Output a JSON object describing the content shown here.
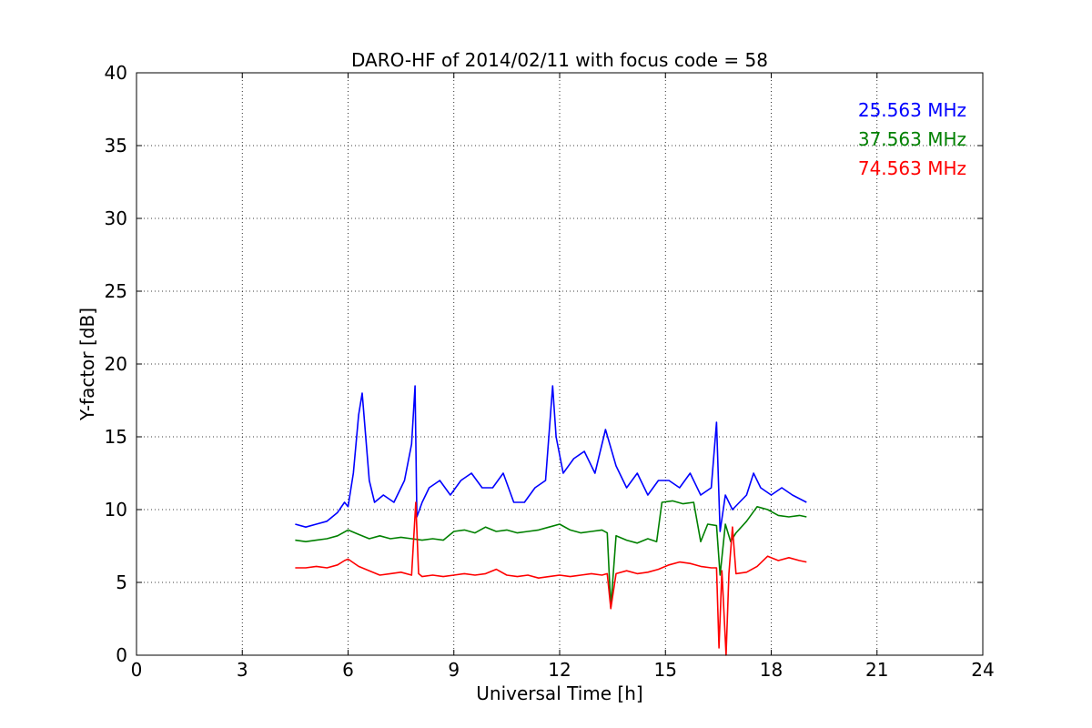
{
  "chart_data": {
    "type": "line",
    "title": "DARO-HF of 2014/02/11 with focus code = 58",
    "xlabel": "Universal Time [h]",
    "ylabel": "Y-factor [dB]",
    "xlim": [
      0,
      24
    ],
    "ylim": [
      0,
      40
    ],
    "xticks": [
      "0",
      "3",
      "6",
      "9",
      "12",
      "15",
      "18",
      "21",
      "24"
    ],
    "yticks": [
      "0",
      "5",
      "10",
      "15",
      "20",
      "25",
      "30",
      "35",
      "40"
    ],
    "grid": true,
    "legend_position": "top-right",
    "series": [
      {
        "name": "25.563 MHz",
        "color": "#0000ff",
        "x": [
          4.5,
          4.8,
          5.1,
          5.4,
          5.7,
          5.9,
          6.0,
          6.15,
          6.3,
          6.4,
          6.5,
          6.6,
          6.75,
          7.0,
          7.3,
          7.6,
          7.8,
          7.9,
          7.95,
          8.1,
          8.3,
          8.6,
          8.9,
          9.2,
          9.5,
          9.8,
          10.1,
          10.4,
          10.7,
          11.0,
          11.3,
          11.6,
          11.8,
          11.9,
          12.1,
          12.4,
          12.7,
          13.0,
          13.3,
          13.6,
          13.9,
          14.2,
          14.5,
          14.8,
          15.1,
          15.4,
          15.7,
          16.0,
          16.3,
          16.45,
          16.55,
          16.7,
          16.9,
          17.1,
          17.3,
          17.5,
          17.7,
          18.0,
          18.3,
          18.6,
          19.0
        ],
        "y": [
          9.0,
          8.8,
          9.0,
          9.2,
          9.8,
          10.5,
          10.2,
          12.5,
          16.5,
          18.0,
          15.0,
          12.0,
          10.5,
          11.0,
          10.5,
          12.0,
          14.5,
          18.5,
          9.5,
          10.5,
          11.5,
          12.0,
          11.0,
          12.0,
          12.5,
          11.5,
          11.5,
          12.5,
          10.5,
          10.5,
          11.5,
          12.0,
          18.5,
          15.0,
          12.5,
          13.5,
          14.0,
          12.5,
          15.5,
          13.0,
          11.5,
          12.5,
          11.0,
          12.0,
          12.0,
          11.5,
          12.5,
          11.0,
          11.5,
          16.0,
          8.5,
          11.0,
          10.0,
          10.5,
          11.0,
          12.5,
          11.5,
          11.0,
          11.5,
          11.0,
          10.5
        ]
      },
      {
        "name": "37.563 MHz",
        "color": "#008000",
        "x": [
          4.5,
          4.8,
          5.1,
          5.4,
          5.7,
          6.0,
          6.3,
          6.6,
          6.9,
          7.2,
          7.5,
          7.8,
          8.1,
          8.4,
          8.7,
          9.0,
          9.3,
          9.6,
          9.9,
          10.2,
          10.5,
          10.8,
          11.1,
          11.4,
          11.7,
          12.0,
          12.3,
          12.6,
          12.9,
          13.2,
          13.35,
          13.45,
          13.6,
          13.9,
          14.2,
          14.5,
          14.75,
          14.9,
          15.2,
          15.5,
          15.8,
          16.0,
          16.2,
          16.45,
          16.55,
          16.7,
          16.85,
          17.0,
          17.3,
          17.6,
          17.9,
          18.2,
          18.5,
          18.8,
          19.0
        ],
        "y": [
          7.9,
          7.8,
          7.9,
          8.0,
          8.2,
          8.6,
          8.3,
          8.0,
          8.2,
          8.0,
          8.1,
          8.0,
          7.9,
          8.0,
          7.9,
          8.5,
          8.6,
          8.4,
          8.8,
          8.5,
          8.6,
          8.4,
          8.5,
          8.6,
          8.8,
          9.0,
          8.6,
          8.4,
          8.5,
          8.6,
          8.4,
          3.3,
          8.2,
          7.9,
          7.7,
          8.0,
          7.8,
          10.5,
          10.6,
          10.4,
          10.5,
          7.8,
          9.0,
          8.9,
          5.5,
          9.0,
          7.8,
          8.4,
          9.2,
          10.2,
          10.0,
          9.6,
          9.5,
          9.6,
          9.5
        ]
      },
      {
        "name": "74.563 MHz",
        "color": "#ff0000",
        "x": [
          4.5,
          4.8,
          5.1,
          5.4,
          5.7,
          5.9,
          6.0,
          6.3,
          6.6,
          6.9,
          7.2,
          7.5,
          7.8,
          7.92,
          8.0,
          8.1,
          8.4,
          8.7,
          9.0,
          9.3,
          9.6,
          9.9,
          10.2,
          10.5,
          10.8,
          11.1,
          11.4,
          11.7,
          12.0,
          12.3,
          12.6,
          12.9,
          13.2,
          13.35,
          13.45,
          13.6,
          13.9,
          14.2,
          14.5,
          14.8,
          15.1,
          15.4,
          15.7,
          16.0,
          16.3,
          16.45,
          16.52,
          16.6,
          16.72,
          16.8,
          16.9,
          17.0,
          17.3,
          17.6,
          17.9,
          18.2,
          18.5,
          18.8,
          19.0
        ],
        "y": [
          6.0,
          6.0,
          6.1,
          6.0,
          6.2,
          6.5,
          6.6,
          6.1,
          5.8,
          5.5,
          5.6,
          5.7,
          5.5,
          10.5,
          5.6,
          5.4,
          5.5,
          5.4,
          5.5,
          5.6,
          5.5,
          5.6,
          5.9,
          5.5,
          5.4,
          5.5,
          5.3,
          5.4,
          5.5,
          5.4,
          5.5,
          5.6,
          5.5,
          5.6,
          3.2,
          5.6,
          5.8,
          5.6,
          5.7,
          5.9,
          6.2,
          6.4,
          6.3,
          6.1,
          6.0,
          6.0,
          0.5,
          5.8,
          0.0,
          5.6,
          8.8,
          5.6,
          5.7,
          6.1,
          6.8,
          6.5,
          6.7,
          6.5,
          6.4
        ]
      }
    ]
  }
}
